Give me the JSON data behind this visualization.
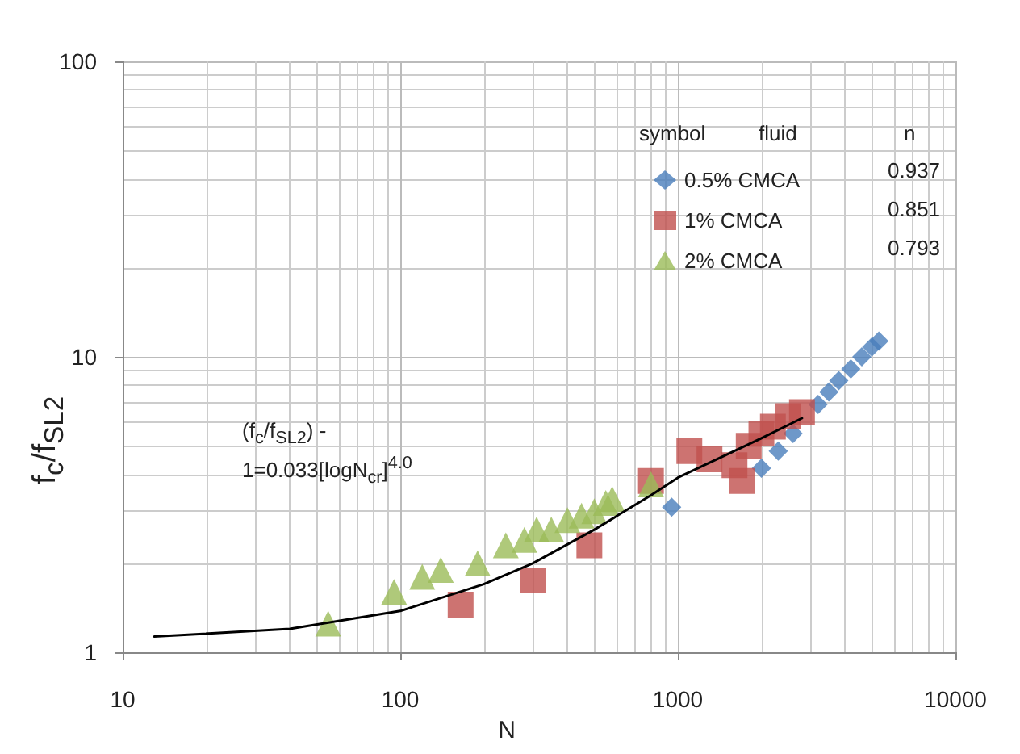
{
  "chart_data": {
    "type": "scatter",
    "xlabel": "N",
    "ylabel": "f$_{c}$/f$_{SL2}$",
    "log": "xy",
    "grid": true,
    "legend": "top right",
    "xlim": [
      10,
      10000
    ],
    "xticks": [
      10,
      100,
      1000,
      10000
    ],
    "ylim": [
      1,
      100
    ],
    "yticks": [
      1,
      10,
      100
    ],
    "annotations": [
      "symbol",
      "fluid",
      "n",
      "0.937",
      "0.851",
      "0.793",
      "(f$_{c}$/f$_{SL2}$) -\n1=0.033[logN$_{cr}$]$^{4.0}$"
    ],
    "series": [
      {
        "name": "0.5% CMCA",
        "color": "#4a7ebb",
        "marker": "diamond",
        "x": [
          950,
          2000,
          2300,
          2600,
          2900,
          3200,
          3500,
          3800,
          4200,
          4600,
          5000,
          5300
        ],
        "values": [
          3.1,
          4.2,
          4.8,
          5.5,
          null,
          6.9,
          7.6,
          8.3,
          9.1,
          10,
          10.8,
          11.3
        ]
      },
      {
        "name": "1% CMCA",
        "color": "#c0504d",
        "marker": "square",
        "x": [
          165,
          300,
          480,
          780,
          800,
          1100,
          1200,
          1300,
          1500,
          1600,
          1700,
          1800,
          2000,
          2200,
          2500,
          2800
        ],
        "values": [
          1.45,
          1.75,
          2.3,
          null,
          3.8,
          4.8,
          null,
          4.5,
          null,
          4.3,
          3.8,
          5.0,
          5.5,
          5.8,
          6.3,
          6.5
        ]
      },
      {
        "name": "2% CMCA",
        "color": "#9bbb59",
        "marker": "triangle",
        "x": [
          55,
          95,
          120,
          140,
          190,
          240,
          280,
          310,
          350,
          400,
          450,
          500,
          550,
          580,
          800
        ],
        "values": [
          1.25,
          1.6,
          1.8,
          1.9,
          2.0,
          2.3,
          2.4,
          2.6,
          2.6,
          2.8,
          2.9,
          3.0,
          3.2,
          3.3,
          3.7
        ]
      },
      {
        "type": "line",
        "color": "#000000",
        "marker": "none",
        "line_style": "solid",
        "x": [
          13,
          40,
          100,
          200,
          300,
          500,
          800,
          1000,
          2000,
          2800
        ],
        "values": [
          1.13,
          1.2,
          1.38,
          1.7,
          2.0,
          2.6,
          3.4,
          3.9,
          5.3,
          6.2
        ]
      }
    ]
  }
}
